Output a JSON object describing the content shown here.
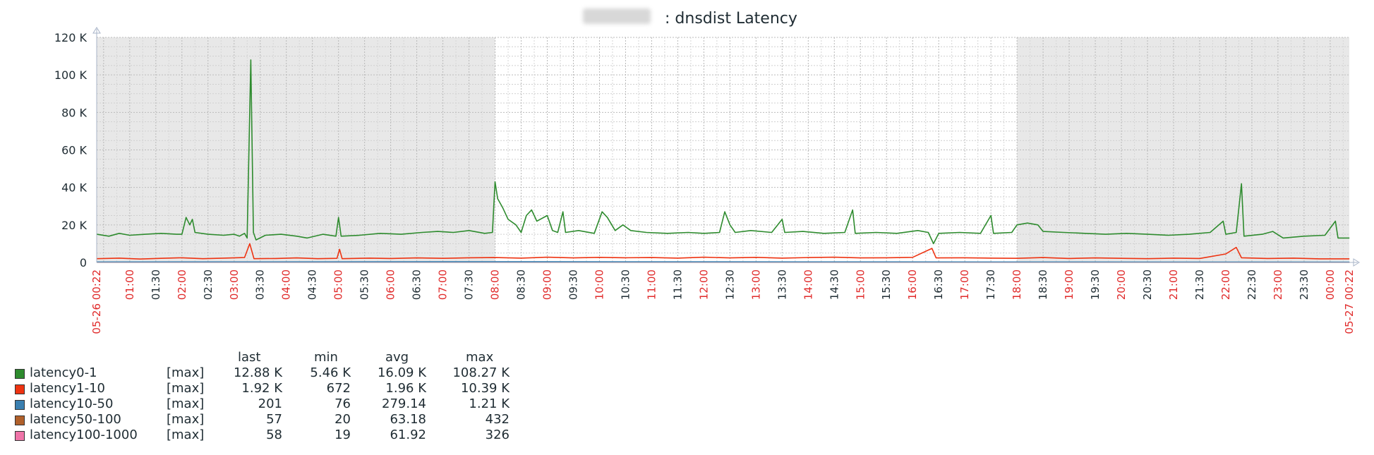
{
  "title_suffix": ": dnsdist Latency",
  "legend": {
    "headers": {
      "last": "last",
      "min": "min",
      "avg": "avg",
      "max": "max"
    },
    "items": [
      {
        "name": "latency0-1",
        "mode": "[max]",
        "last": "12.88 K",
        "min": "5.46 K",
        "avg": "16.09 K",
        "max": "108.27 K",
        "color": "#2e8b2e"
      },
      {
        "name": "latency1-10",
        "mode": "[max]",
        "last": "1.92 K",
        "min": "672",
        "avg": "1.96 K",
        "max": "10.39 K",
        "color": "#ee3311"
      },
      {
        "name": "latency10-50",
        "mode": "[max]",
        "last": "201",
        "min": "76",
        "avg": "279.14",
        "max": "1.21 K",
        "color": "#3a7fb0"
      },
      {
        "name": "latency50-100",
        "mode": "[max]",
        "last": "57",
        "min": "20",
        "avg": "63.18",
        "max": "432",
        "color": "#b0602a"
      },
      {
        "name": "latency100-1000",
        "mode": "[max]",
        "last": "58",
        "min": "19",
        "avg": "61.92",
        "max": "326",
        "color": "#ef74a8"
      }
    ]
  },
  "chart_data": {
    "type": "line",
    "title": ": dnsdist Latency",
    "ylim": [
      0,
      120000
    ],
    "y_ticks": [
      "0",
      "20 K",
      "40 K",
      "60 K",
      "80 K",
      "100 K",
      "120 K"
    ],
    "x_range": [
      "05-26 00:22",
      "05-27 00:22"
    ],
    "x_ticks": [
      {
        "label": "05-26 00:22",
        "hour": 0.3667,
        "red": true
      },
      {
        "label": "01:00",
        "hour": 1,
        "red": true
      },
      {
        "label": "01:30",
        "hour": 1.5,
        "red": false
      },
      {
        "label": "02:00",
        "hour": 2,
        "red": true
      },
      {
        "label": "02:30",
        "hour": 2.5,
        "red": false
      },
      {
        "label": "03:00",
        "hour": 3,
        "red": true
      },
      {
        "label": "03:30",
        "hour": 3.5,
        "red": false
      },
      {
        "label": "04:00",
        "hour": 4,
        "red": true
      },
      {
        "label": "04:30",
        "hour": 4.5,
        "red": false
      },
      {
        "label": "05:00",
        "hour": 5,
        "red": true
      },
      {
        "label": "05:30",
        "hour": 5.5,
        "red": false
      },
      {
        "label": "06:00",
        "hour": 6,
        "red": true
      },
      {
        "label": "06:30",
        "hour": 6.5,
        "red": false
      },
      {
        "label": "07:00",
        "hour": 7,
        "red": true
      },
      {
        "label": "07:30",
        "hour": 7.5,
        "red": false
      },
      {
        "label": "08:00",
        "hour": 8,
        "red": true
      },
      {
        "label": "08:30",
        "hour": 8.5,
        "red": false
      },
      {
        "label": "09:00",
        "hour": 9,
        "red": true
      },
      {
        "label": "09:30",
        "hour": 9.5,
        "red": false
      },
      {
        "label": "10:00",
        "hour": 10,
        "red": true
      },
      {
        "label": "10:30",
        "hour": 10.5,
        "red": false
      },
      {
        "label": "11:00",
        "hour": 11,
        "red": true
      },
      {
        "label": "11:30",
        "hour": 11.5,
        "red": false
      },
      {
        "label": "12:00",
        "hour": 12,
        "red": true
      },
      {
        "label": "12:30",
        "hour": 12.5,
        "red": false
      },
      {
        "label": "13:00",
        "hour": 13,
        "red": true
      },
      {
        "label": "13:30",
        "hour": 13.5,
        "red": false
      },
      {
        "label": "14:00",
        "hour": 14,
        "red": true
      },
      {
        "label": "14:30",
        "hour": 14.5,
        "red": false
      },
      {
        "label": "15:00",
        "hour": 15,
        "red": true
      },
      {
        "label": "15:30",
        "hour": 15.5,
        "red": false
      },
      {
        "label": "16:00",
        "hour": 16,
        "red": true
      },
      {
        "label": "16:30",
        "hour": 16.5,
        "red": false
      },
      {
        "label": "17:00",
        "hour": 17,
        "red": true
      },
      {
        "label": "17:30",
        "hour": 17.5,
        "red": false
      },
      {
        "label": "18:00",
        "hour": 18,
        "red": true
      },
      {
        "label": "18:30",
        "hour": 18.5,
        "red": false
      },
      {
        "label": "19:00",
        "hour": 19,
        "red": true
      },
      {
        "label": "19:30",
        "hour": 19.5,
        "red": false
      },
      {
        "label": "20:00",
        "hour": 20,
        "red": true
      },
      {
        "label": "20:30",
        "hour": 20.5,
        "red": false
      },
      {
        "label": "21:00",
        "hour": 21,
        "red": true
      },
      {
        "label": "21:30",
        "hour": 21.5,
        "red": false
      },
      {
        "label": "22:00",
        "hour": 22,
        "red": true
      },
      {
        "label": "22:30",
        "hour": 22.5,
        "red": false
      },
      {
        "label": "23:00",
        "hour": 23,
        "red": true
      },
      {
        "label": "23:30",
        "hour": 23.5,
        "red": false
      },
      {
        "label": "00:00",
        "hour": 24,
        "red": true
      },
      {
        "label": "05-27 00:22",
        "hour": 24.3667,
        "red": true
      }
    ],
    "shaded_periods": [
      [
        0.3667,
        8
      ],
      [
        18,
        24.3667
      ]
    ],
    "grid": true,
    "series": [
      {
        "name": "latency0-1",
        "color": "#2e8b2e",
        "points": [
          [
            0.37,
            15000
          ],
          [
            0.6,
            14000
          ],
          [
            0.8,
            15500
          ],
          [
            1.0,
            14500
          ],
          [
            1.3,
            15000
          ],
          [
            1.6,
            15500
          ],
          [
            1.9,
            15000
          ],
          [
            2.0,
            15000
          ],
          [
            2.08,
            24000
          ],
          [
            2.15,
            20000
          ],
          [
            2.2,
            23000
          ],
          [
            2.25,
            16000
          ],
          [
            2.5,
            15000
          ],
          [
            2.8,
            14500
          ],
          [
            3.0,
            15000
          ],
          [
            3.1,
            14000
          ],
          [
            3.2,
            15500
          ],
          [
            3.25,
            13000
          ],
          [
            3.32,
            108000
          ],
          [
            3.37,
            16000
          ],
          [
            3.42,
            12000
          ],
          [
            3.6,
            14500
          ],
          [
            3.9,
            15000
          ],
          [
            4.2,
            14000
          ],
          [
            4.4,
            13000
          ],
          [
            4.7,
            15000
          ],
          [
            4.95,
            14000
          ],
          [
            5.0,
            24000
          ],
          [
            5.05,
            14000
          ],
          [
            5.4,
            14500
          ],
          [
            5.8,
            15500
          ],
          [
            6.2,
            15000
          ],
          [
            6.6,
            16000
          ],
          [
            6.9,
            16500
          ],
          [
            7.2,
            16000
          ],
          [
            7.5,
            17000
          ],
          [
            7.8,
            15500
          ],
          [
            7.95,
            16000
          ],
          [
            8.0,
            43000
          ],
          [
            8.05,
            34000
          ],
          [
            8.15,
            29000
          ],
          [
            8.25,
            23000
          ],
          [
            8.4,
            20000
          ],
          [
            8.5,
            16000
          ],
          [
            8.6,
            25000
          ],
          [
            8.7,
            28000
          ],
          [
            8.8,
            22000
          ],
          [
            9.0,
            25000
          ],
          [
            9.1,
            17000
          ],
          [
            9.2,
            16000
          ],
          [
            9.3,
            27000
          ],
          [
            9.35,
            16000
          ],
          [
            9.6,
            17000
          ],
          [
            9.9,
            15500
          ],
          [
            10.05,
            27000
          ],
          [
            10.15,
            24000
          ],
          [
            10.3,
            17000
          ],
          [
            10.45,
            20000
          ],
          [
            10.6,
            17000
          ],
          [
            10.9,
            16000
          ],
          [
            11.3,
            15500
          ],
          [
            11.7,
            16000
          ],
          [
            12.0,
            15500
          ],
          [
            12.3,
            16000
          ],
          [
            12.4,
            27000
          ],
          [
            12.5,
            20000
          ],
          [
            12.6,
            16000
          ],
          [
            12.9,
            17000
          ],
          [
            13.3,
            16000
          ],
          [
            13.5,
            23000
          ],
          [
            13.55,
            16000
          ],
          [
            13.9,
            16500
          ],
          [
            14.3,
            15500
          ],
          [
            14.7,
            16000
          ],
          [
            14.85,
            28000
          ],
          [
            14.9,
            15500
          ],
          [
            15.3,
            16000
          ],
          [
            15.7,
            15500
          ],
          [
            16.1,
            17000
          ],
          [
            16.3,
            16000
          ],
          [
            16.4,
            10000
          ],
          [
            16.5,
            15500
          ],
          [
            16.9,
            16000
          ],
          [
            17.3,
            15500
          ],
          [
            17.5,
            25000
          ],
          [
            17.55,
            15500
          ],
          [
            17.9,
            16000
          ],
          [
            18.0,
            20000
          ],
          [
            18.2,
            21000
          ],
          [
            18.4,
            20000
          ],
          [
            18.5,
            16500
          ],
          [
            18.9,
            16000
          ],
          [
            19.3,
            15500
          ],
          [
            19.7,
            15000
          ],
          [
            20.1,
            15500
          ],
          [
            20.5,
            15000
          ],
          [
            20.9,
            14500
          ],
          [
            21.3,
            15000
          ],
          [
            21.7,
            16000
          ],
          [
            21.95,
            22000
          ],
          [
            22.0,
            15000
          ],
          [
            22.2,
            16000
          ],
          [
            22.3,
            42000
          ],
          [
            22.35,
            14000
          ],
          [
            22.7,
            15000
          ],
          [
            22.9,
            16500
          ],
          [
            23.1,
            13000
          ],
          [
            23.5,
            14000
          ],
          [
            23.9,
            14500
          ],
          [
            24.1,
            22000
          ],
          [
            24.15,
            13000
          ],
          [
            24.37,
            13000
          ]
        ]
      },
      {
        "name": "latency1-10",
        "color": "#ee3311",
        "points": [
          [
            0.37,
            2000
          ],
          [
            0.8,
            2300
          ],
          [
            1.2,
            1800
          ],
          [
            1.6,
            2200
          ],
          [
            2.0,
            2500
          ],
          [
            2.4,
            2000
          ],
          [
            2.8,
            2300
          ],
          [
            3.2,
            2600
          ],
          [
            3.3,
            10000
          ],
          [
            3.38,
            2000
          ],
          [
            3.8,
            2100
          ],
          [
            4.2,
            2400
          ],
          [
            4.6,
            2000
          ],
          [
            4.97,
            2200
          ],
          [
            5.02,
            7000
          ],
          [
            5.07,
            2000
          ],
          [
            5.6,
            2300
          ],
          [
            6.0,
            2100
          ],
          [
            6.5,
            2400
          ],
          [
            7.0,
            2200
          ],
          [
            7.5,
            2500
          ],
          [
            8.0,
            2600
          ],
          [
            8.5,
            2300
          ],
          [
            9.0,
            2800
          ],
          [
            9.5,
            2400
          ],
          [
            10.0,
            2700
          ],
          [
            10.5,
            2500
          ],
          [
            11.0,
            2600
          ],
          [
            11.5,
            2300
          ],
          [
            12.0,
            2800
          ],
          [
            12.5,
            2400
          ],
          [
            13.0,
            2700
          ],
          [
            13.5,
            2300
          ],
          [
            14.0,
            2600
          ],
          [
            14.5,
            2800
          ],
          [
            15.0,
            2400
          ],
          [
            15.5,
            2500
          ],
          [
            16.0,
            2700
          ],
          [
            16.37,
            7500
          ],
          [
            16.45,
            2400
          ],
          [
            17.0,
            2500
          ],
          [
            17.5,
            2300
          ],
          [
            18.0,
            2200
          ],
          [
            18.5,
            2600
          ],
          [
            19.0,
            2100
          ],
          [
            19.5,
            2400
          ],
          [
            20.0,
            2200
          ],
          [
            20.5,
            2000
          ],
          [
            21.0,
            2300
          ],
          [
            21.5,
            2100
          ],
          [
            22.0,
            4500
          ],
          [
            22.2,
            8000
          ],
          [
            22.3,
            2500
          ],
          [
            22.8,
            2100
          ],
          [
            23.3,
            2300
          ],
          [
            23.8,
            1900
          ],
          [
            24.37,
            1900
          ]
        ]
      },
      {
        "name": "latency10-50",
        "color": "#3a7fb0",
        "points": [
          [
            0.37,
            250
          ],
          [
            8.0,
            400
          ],
          [
            12.0,
            350
          ],
          [
            18.0,
            250
          ],
          [
            24.37,
            200
          ]
        ]
      },
      {
        "name": "latency50-100",
        "color": "#b0602a",
        "points": [
          [
            0.37,
            60
          ],
          [
            12.0,
            65
          ],
          [
            24.37,
            57
          ]
        ]
      },
      {
        "name": "latency100-1000",
        "color": "#ef74a8",
        "points": [
          [
            0.37,
            60
          ],
          [
            12.0,
            62
          ],
          [
            24.37,
            58
          ]
        ]
      }
    ]
  }
}
